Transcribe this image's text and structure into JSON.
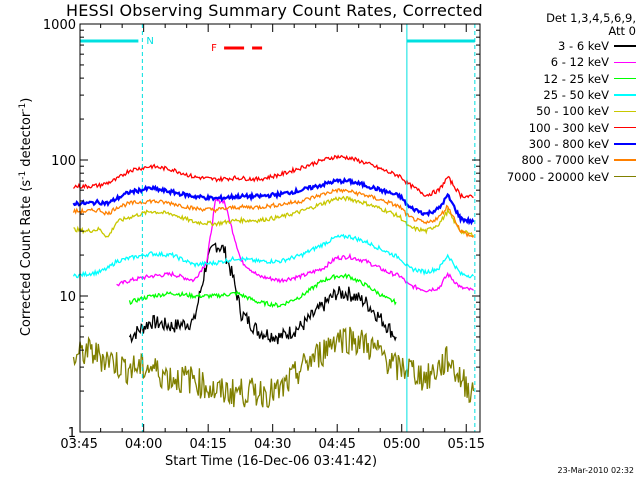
{
  "chart_data": {
    "type": "line",
    "title": "HESSI Observing Summary Count Rates, Corrected",
    "xlabel": "Start Time (16-Dec-06 03:41:42)",
    "ylabel": "Corrected Count Rate (s",
    "ylabel_sup": "-1",
    "ylabel_mid": " detector",
    "ylabel_end": ")",
    "y_scale": "log",
    "ylim": [
      1,
      1000
    ],
    "xlim_minutes": [
      3.5,
      96.5
    ],
    "x_ticks": [
      {
        "label": "03:45",
        "minute": 3.3
      },
      {
        "label": "04:00",
        "minute": 18.3
      },
      {
        "label": "04:15",
        "minute": 33.3
      },
      {
        "label": "04:30",
        "minute": 48.3
      },
      {
        "label": "04:45",
        "minute": 63.3
      },
      {
        "label": "05:00",
        "minute": 78.3
      },
      {
        "label": "05:15",
        "minute": 93.3
      }
    ],
    "y_ticks": [
      "1",
      "10",
      "100",
      "1000"
    ],
    "legend_header": [
      "Det 1,3,4,5,6,9,",
      "Att 0"
    ],
    "series": [
      {
        "name": "3 - 6 keV",
        "color": "#000000",
        "x": [
          15,
          20,
          25,
          30,
          33,
          35,
          37,
          39,
          41,
          45,
          50,
          55,
          60,
          63,
          66,
          70,
          75,
          77
        ],
        "y": [
          5,
          6.5,
          6,
          6.5,
          18,
          24,
          22,
          14,
          7.5,
          5.5,
          5,
          6,
          8.5,
          10.5,
          10.5,
          9,
          6,
          5
        ]
      },
      {
        "name": "6 - 12 keV",
        "color": "#ff00ff",
        "x": [
          12,
          15,
          20,
          25,
          30,
          33,
          35,
          37,
          39,
          41,
          45,
          50,
          55,
          60,
          63,
          66,
          70,
          75,
          78,
          80,
          84,
          87,
          89,
          92,
          95
        ],
        "y": [
          12,
          13,
          14,
          14.5,
          13,
          18,
          50,
          50,
          30,
          18,
          14,
          13,
          14,
          16,
          19,
          19.5,
          18,
          15,
          14,
          12,
          11,
          11.5,
          14.5,
          11.5,
          11
        ]
      },
      {
        "name": "12 - 25 keV",
        "color": "#00ff00",
        "x": [
          15,
          20,
          25,
          30,
          35,
          40,
          45,
          50,
          55,
          60,
          63,
          66,
          70,
          75,
          77
        ],
        "y": [
          9,
          10,
          10.5,
          10,
          10,
          10.5,
          9,
          8.5,
          10,
          13,
          14,
          14,
          12,
          9.5,
          9
        ]
      },
      {
        "name": "25 - 50 keV",
        "color": "#00ffff",
        "x": [
          2,
          5,
          8,
          10,
          12,
          15,
          20,
          25,
          30,
          35,
          40,
          45,
          50,
          55,
          60,
          63,
          66,
          70,
          75,
          78,
          80,
          84,
          87,
          89,
          92,
          95
        ],
        "y": [
          14,
          14.5,
          15,
          16,
          18,
          19,
          20.5,
          20,
          17,
          17.5,
          19,
          18,
          18,
          20,
          24,
          27,
          27.5,
          25,
          21,
          19,
          16,
          15,
          16,
          20,
          14.5,
          14
        ]
      },
      {
        "name": "50 - 100 keV",
        "color": "#c8c800",
        "x": [
          2,
          5,
          8,
          10,
          12,
          15,
          20,
          25,
          30,
          35,
          40,
          45,
          50,
          55,
          60,
          63,
          66,
          70,
          75,
          78,
          80,
          84,
          87,
          89,
          92,
          95
        ],
        "y": [
          31,
          30,
          31,
          27,
          35,
          38,
          42,
          40,
          35,
          34,
          36,
          36,
          38,
          42,
          48,
          52,
          52,
          48,
          42,
          38,
          32,
          30,
          34,
          42,
          30,
          28
        ]
      },
      {
        "name": "100 - 300 keV",
        "color": "#ff0000",
        "x": [
          2,
          5,
          8,
          10,
          12,
          15,
          20,
          25,
          30,
          35,
          40,
          45,
          50,
          55,
          60,
          63,
          66,
          70,
          75,
          78,
          80,
          84,
          87,
          89,
          92,
          95
        ],
        "y": [
          64,
          64,
          65,
          68,
          72,
          84,
          90,
          85,
          75,
          72,
          74,
          72,
          78,
          88,
          100,
          106,
          104,
          95,
          82,
          76,
          66,
          55,
          60,
          75,
          55,
          53
        ]
      },
      {
        "name": "300 - 800 keV",
        "color": "#0000ff",
        "x": [
          2,
          5,
          8,
          10,
          12,
          15,
          20,
          25,
          30,
          35,
          40,
          45,
          50,
          55,
          60,
          63,
          66,
          70,
          75,
          78,
          80,
          84,
          87,
          89,
          92,
          95
        ],
        "y": [
          48,
          48,
          49,
          48,
          52,
          58,
          62,
          58,
          54,
          52,
          54,
          54,
          56,
          60,
          66,
          70,
          70,
          65,
          58,
          54,
          45,
          40,
          44,
          55,
          37,
          35
        ]
      },
      {
        "name": "800 - 7000 keV",
        "color": "#ff8000",
        "x": [
          2,
          5,
          8,
          10,
          12,
          15,
          20,
          25,
          30,
          35,
          40,
          45,
          50,
          55,
          60,
          63,
          66,
          70,
          75,
          78,
          80,
          84,
          87,
          89,
          92,
          95
        ],
        "y": [
          42,
          42,
          43,
          40,
          45,
          48,
          50,
          48,
          44,
          43,
          45,
          45,
          47,
          50,
          56,
          60,
          59,
          55,
          49,
          45,
          38,
          34,
          38,
          46,
          30,
          27
        ]
      },
      {
        "name": "7000 - 20000 keV",
        "color": "#808000",
        "x": [
          2,
          5,
          10,
          14,
          16,
          20,
          25,
          30,
          35,
          40,
          45,
          50,
          55,
          60,
          63,
          66,
          70,
          75,
          77,
          80,
          84,
          87,
          89,
          92,
          95
        ],
        "y": [
          3.5,
          4,
          3.5,
          3,
          3,
          3,
          2.5,
          2.5,
          2,
          2,
          2,
          2,
          3,
          4,
          5,
          5,
          4.5,
          3.5,
          3,
          3,
          2.5,
          3,
          3.5,
          2.5,
          2
        ]
      }
    ],
    "annotations": [
      {
        "label": "N",
        "color": "#00e0e0",
        "x_start_minute": 18
      },
      {
        "label": "F",
        "color": "#ff0000",
        "x_start_minute": 37,
        "x_end_minute": 52
      }
    ],
    "stamp": "23-Mar-2010 02:32"
  }
}
